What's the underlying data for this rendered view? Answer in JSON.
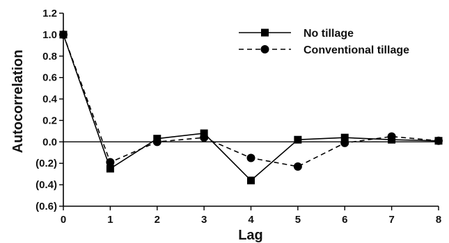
{
  "chart_data": {
    "type": "line",
    "title": "",
    "xlabel": "Lag",
    "ylabel": "Autocorrelation",
    "x": [
      0,
      1,
      2,
      3,
      4,
      5,
      6,
      7,
      8
    ],
    "xticks": [
      "0",
      "1",
      "2",
      "3",
      "4",
      "5",
      "6",
      "7",
      "8"
    ],
    "xlim": [
      0,
      8
    ],
    "yticks": [
      {
        "value": 1.2,
        "label": "1.2"
      },
      {
        "value": 1.0,
        "label": "1.0"
      },
      {
        "value": 0.8,
        "label": "0.8"
      },
      {
        "value": 0.6,
        "label": "0.6"
      },
      {
        "value": 0.4,
        "label": "0.4"
      },
      {
        "value": 0.2,
        "label": "0.2"
      },
      {
        "value": 0.0,
        "label": "0.0"
      },
      {
        "value": -0.2,
        "label": "(0.2)"
      },
      {
        "value": -0.4,
        "label": "(0.4)"
      },
      {
        "value": -0.6,
        "label": "(0.6)"
      }
    ],
    "ylim": [
      -0.6,
      1.2
    ],
    "zero_line": true,
    "grid": false,
    "legend_position": "top-right",
    "series": [
      {
        "name": "No tillage",
        "line_style": "solid",
        "marker": "square",
        "color": "#000000",
        "values": [
          1.0,
          -0.25,
          0.03,
          0.08,
          -0.36,
          0.02,
          0.04,
          0.02,
          0.01
        ]
      },
      {
        "name": "Conventional tillage",
        "line_style": "dashed",
        "marker": "circle",
        "color": "#000000",
        "values": [
          1.0,
          -0.19,
          0.0,
          0.04,
          -0.15,
          -0.23,
          -0.01,
          0.05,
          0.01
        ]
      }
    ]
  }
}
